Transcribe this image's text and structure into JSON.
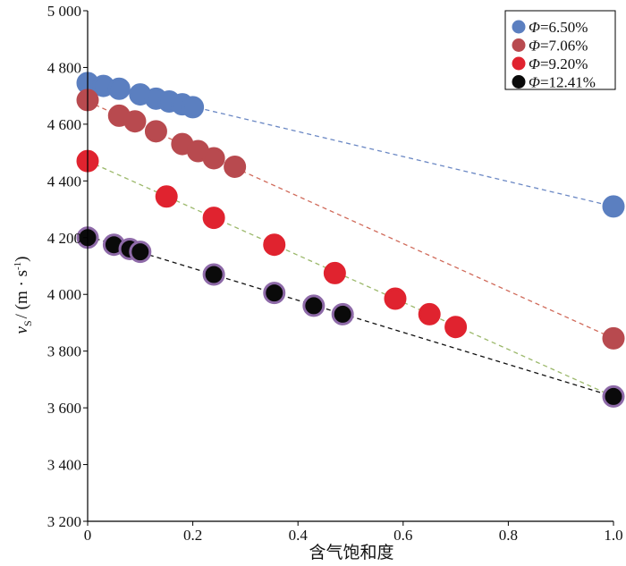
{
  "chart_data": {
    "type": "scatter",
    "title": "",
    "xlabel": "含气饱和度",
    "ylabel_main": "v",
    "ylabel_sub": "S",
    "ylabel_rest": "/ (m · s",
    "ylabel_sup": "-1",
    "ylabel_close": ")",
    "xlim": [
      0,
      1.0
    ],
    "ylim": [
      3200,
      5000
    ],
    "x_ticks": [
      0,
      0.2,
      0.4,
      0.6,
      0.8,
      1.0
    ],
    "x_tick_labels": [
      "0",
      "0.2",
      "0.4",
      "0.6",
      "0.8",
      "1.0"
    ],
    "y_ticks": [
      3200,
      3400,
      3600,
      3800,
      4000,
      4200,
      4400,
      4600,
      4800,
      5000
    ],
    "y_tick_labels": [
      "3 200",
      "3 400",
      "3 600",
      "3 800",
      "4 000",
      "4 200",
      "4 400",
      "4 600",
      "4 800",
      "5 000"
    ],
    "grid": false,
    "legend_position": "top-right",
    "series": [
      {
        "name_symbol": "Φ",
        "name_value": "=6.50%",
        "color": "#5b7fc0",
        "stroke": "#5b7fc0",
        "trend": [
          [
            0,
            4750
          ],
          [
            1.0,
            4310
          ]
        ],
        "trend_color": "#6b88c4",
        "x": [
          0,
          0.03,
          0.06,
          0.1,
          0.13,
          0.155,
          0.18,
          0.2,
          1.0
        ],
        "y": [
          4745,
          4735,
          4725,
          4705,
          4690,
          4680,
          4670,
          4660,
          4310
        ]
      },
      {
        "name_symbol": "Φ",
        "name_value": "=7.06%",
        "color": "#b84a4f",
        "stroke": "#b84a4f",
        "trend": [
          [
            0,
            4680
          ],
          [
            1.0,
            3845
          ]
        ],
        "trend_color": "#d06a5a",
        "x": [
          0,
          0.06,
          0.09,
          0.13,
          0.18,
          0.21,
          0.24,
          0.28,
          1.0
        ],
        "y": [
          4685,
          4630,
          4610,
          4575,
          4530,
          4505,
          4480,
          4450,
          3845
        ]
      },
      {
        "name_symbol": "Φ",
        "name_value": "=9.20%",
        "color": "#e0232f",
        "stroke": "#e0232f",
        "trend": [
          [
            0,
            4470
          ],
          [
            1.0,
            3640
          ]
        ],
        "trend_color": "#9bb86a",
        "x": [
          0,
          0.15,
          0.24,
          0.355,
          0.47,
          0.585,
          0.65,
          0.7
        ],
        "y": [
          4470,
          4345,
          4270,
          4175,
          4075,
          3985,
          3930,
          3885
        ]
      },
      {
        "name_symbol": "Φ",
        "name_value": "=12.41%",
        "color": "#0a0a0a",
        "stroke": "#8e6aa8",
        "trend": [
          [
            0,
            4205
          ],
          [
            1.0,
            3640
          ]
        ],
        "trend_color": "#111111",
        "x": [
          0,
          0.05,
          0.08,
          0.1,
          0.24,
          0.355,
          0.43,
          0.485,
          1.0
        ],
        "y": [
          4200,
          4175,
          4160,
          4150,
          4070,
          4005,
          3960,
          3930,
          3640
        ]
      }
    ]
  }
}
